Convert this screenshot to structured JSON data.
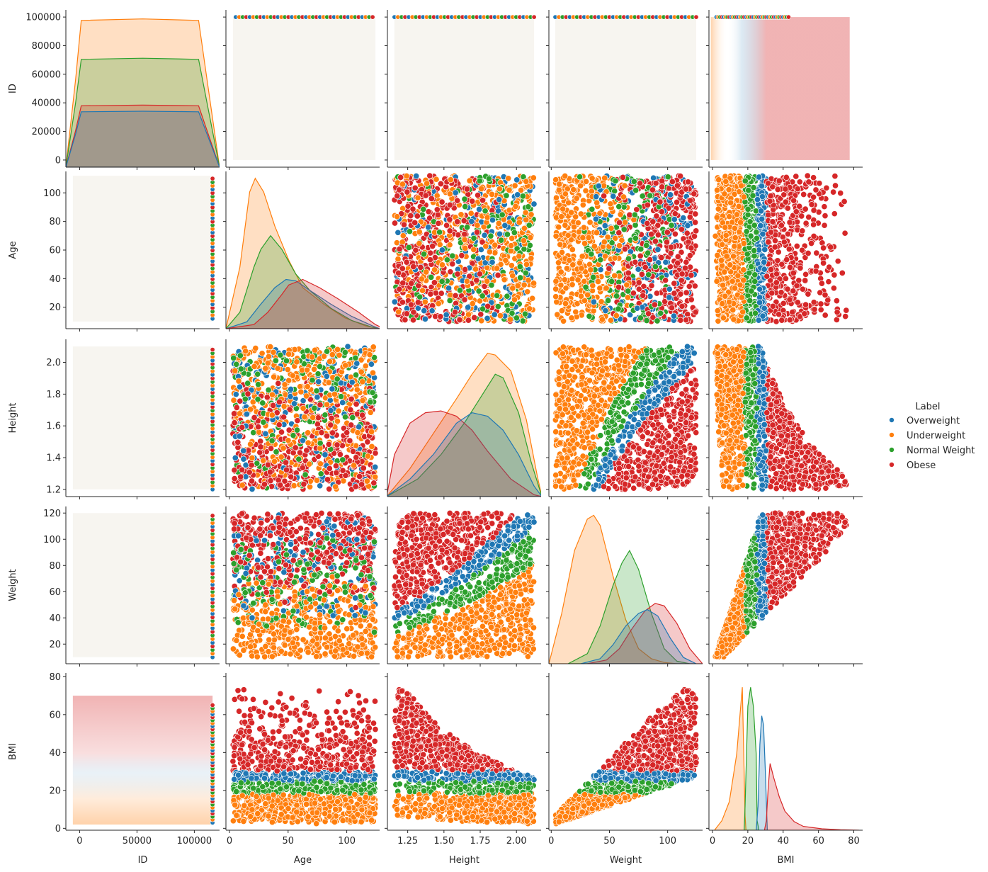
{
  "chart_data": {
    "type": "scatter",
    "subtype": "pairplot",
    "title": "",
    "variables": [
      "ID",
      "Age",
      "Height",
      "Weight",
      "BMI"
    ],
    "axes": {
      "ID": {
        "range": [
          -5000,
          105000
        ],
        "ticks": [
          0,
          20000,
          40000,
          60000,
          80000,
          100000
        ],
        "tick_labels": [
          "0",
          "20000",
          "40000",
          "60000",
          "80000",
          "100000"
        ]
      },
      "Age": {
        "range": [
          5,
          115
        ],
        "ticks": [
          0,
          20,
          40,
          60,
          80,
          100
        ],
        "tick_labels": [
          "0",
          "20",
          "40",
          "60",
          "80",
          "100"
        ]
      },
      "Height": {
        "range": [
          1.155,
          2.145
        ],
        "ticks": [
          1.2,
          1.4,
          1.6,
          1.8,
          2.0
        ],
        "tick_labels": [
          "1.2",
          "1.4",
          "1.6",
          "1.8",
          "2.0"
        ]
      },
      "Weight": {
        "range": [
          5,
          125
        ],
        "ticks": [
          20,
          40,
          60,
          80,
          100,
          120
        ],
        "tick_labels": [
          "20",
          "40",
          "60",
          "80",
          "100",
          "120"
        ]
      },
      "BMI": {
        "range": [
          -1,
          82
        ],
        "ticks": [
          0,
          20,
          40,
          60,
          80
        ],
        "tick_labels": [
          "0",
          "20",
          "40",
          "60",
          "80"
        ]
      }
    },
    "bottom_x_axes": {
      "ID": {
        "range": [
          -12000,
          122000
        ],
        "ticks": [
          0,
          50000,
          100000
        ],
        "tick_labels": [
          "0",
          "50000",
          "100000"
        ]
      },
      "Age": {
        "range": [
          -3,
          128
        ],
        "ticks": [
          0,
          50,
          100
        ],
        "tick_labels": [
          "0",
          "50",
          "100"
        ]
      },
      "Height": {
        "range": [
          1.11,
          2.17
        ],
        "ticks": [
          1.25,
          1.5,
          1.75,
          2.0
        ],
        "tick_labels": [
          "1.25",
          "1.50",
          "1.75",
          "2.00"
        ]
      },
      "Weight": {
        "range": [
          -2,
          130
        ],
        "ticks": [
          0,
          50,
          100
        ],
        "tick_labels": [
          "0",
          "50",
          "100"
        ]
      },
      "BMI": {
        "range": [
          -2,
          85
        ],
        "ticks": [
          0,
          20,
          40,
          60,
          80
        ],
        "tick_labels": [
          "0",
          "20",
          "40",
          "60",
          "80"
        ]
      }
    },
    "legend": {
      "title": "Label",
      "placement": "center-right",
      "entries": [
        {
          "name": "Overweight",
          "color": "#1f77b4"
        },
        {
          "name": "Underweight",
          "color": "#ff7f0e"
        },
        {
          "name": "Normal Weight",
          "color": "#2ca02c"
        },
        {
          "name": "Obese",
          "color": "#d62728"
        }
      ]
    },
    "diagonal_kde": {
      "ID": {
        "ymax": 105000,
        "flat_levels": [
          {
            "series": "Underweight",
            "level": 98000
          },
          {
            "series": "Normal Weight",
            "level": 72000
          },
          {
            "series": "Obese",
            "level": 41000
          },
          {
            "series": "Overweight",
            "level": 37000
          }
        ],
        "x_support": [
          -5000,
          105000
        ]
      },
      "Age": {
        "ymax": 115,
        "series": [
          {
            "name": "Underweight",
            "x": [
              5,
              15,
              22,
              26,
              32,
              40,
              50,
              60,
              75,
              90,
              105,
              115
            ],
            "y": [
              0,
              45,
              100,
              110,
              100,
              75,
              50,
              30,
              18,
              8,
              2,
              0
            ]
          },
          {
            "name": "Normal Weight",
            "x": [
              5,
              15,
              25,
              30,
              37,
              45,
              55,
              65,
              80,
              95,
              110,
              115
            ],
            "y": [
              0,
              12,
              45,
              58,
              68,
              58,
              40,
              28,
              15,
              6,
              1,
              0
            ]
          },
          {
            "name": "Overweight",
            "x": [
              5,
              20,
              30,
              40,
              48,
              55,
              65,
              80,
              95,
              110,
              115
            ],
            "y": [
              0,
              5,
              18,
              30,
              36,
              35,
              28,
              18,
              9,
              2,
              0
            ]
          },
          {
            "name": "Obese",
            "x": [
              5,
              25,
              35,
              45,
              50,
              60,
              72,
              85,
              100,
              112,
              118
            ],
            "y": [
              0,
              3,
              12,
              25,
              32,
              36,
              30,
              22,
              12,
              3,
              0
            ]
          }
        ]
      },
      "Height": {
        "ymax": 4.5,
        "series": [
          {
            "name": "Underweight",
            "x": [
              1.15,
              1.3,
              1.45,
              1.6,
              1.7,
              1.8,
              1.85,
              1.95,
              2.05,
              2.12,
              2.15
            ],
            "y": [
              0,
              0.8,
              1.8,
              2.8,
              3.5,
              4.1,
              4.05,
              3.6,
              2.2,
              0.6,
              0
            ]
          },
          {
            "name": "Normal Weight",
            "x": [
              1.15,
              1.35,
              1.5,
              1.65,
              1.75,
              1.85,
              1.9,
              2.0,
              2.08,
              2.15
            ],
            "y": [
              0,
              0.5,
              1.2,
              2.1,
              2.8,
              3.5,
              3.4,
              2.4,
              1.0,
              0
            ]
          },
          {
            "name": "Obese",
            "x": [
              1.15,
              1.2,
              1.3,
              1.4,
              1.5,
              1.6,
              1.7,
              1.8,
              1.95,
              2.1,
              2.15
            ],
            "y": [
              0,
              1.2,
              2.1,
              2.4,
              2.45,
              2.3,
              1.9,
              1.3,
              0.5,
              0.05,
              0
            ]
          },
          {
            "name": "Overweight",
            "x": [
              1.15,
              1.3,
              1.45,
              1.6,
              1.7,
              1.8,
              1.9,
              2.0,
              2.1,
              2.15
            ],
            "y": [
              0,
              0.5,
              1.2,
              2.1,
              2.4,
              2.3,
              1.9,
              1.2,
              0.3,
              0
            ]
          }
        ]
      },
      "Weight": {
        "ymax": 125,
        "series": [
          {
            "name": "Underweight",
            "x": [
              5,
              15,
              25,
              35,
              40,
              45,
              55,
              65,
              75,
              85,
              95,
              105
            ],
            "y": [
              0,
              40,
              90,
              115,
              118,
              110,
              70,
              35,
              12,
              4,
              1,
              0
            ]
          },
          {
            "name": "Normal Weight",
            "x": [
              20,
              35,
              45,
              55,
              62,
              68,
              75,
              85,
              95,
              105,
              115
            ],
            "y": [
              0,
              8,
              30,
              62,
              80,
              90,
              75,
              40,
              12,
              2,
              0
            ]
          },
          {
            "name": "Obese",
            "x": [
              35,
              50,
              60,
              70,
              80,
              88,
              95,
              105,
              115,
              125
            ],
            "y": [
              0,
              3,
              12,
              28,
              42,
              48,
              46,
              32,
              12,
              0
            ]
          },
          {
            "name": "Overweight",
            "x": [
              30,
              45,
              55,
              65,
              75,
              82,
              90,
              100,
              110,
              120
            ],
            "y": [
              0,
              4,
              15,
              30,
              40,
              43,
              38,
              20,
              5,
              0
            ]
          }
        ]
      },
      "BMI": {
        "ymax": 0.33,
        "series": [
          {
            "name": "Underweight",
            "x": [
              2,
              6,
              10,
              14,
              17,
              18.5,
              19,
              25
            ],
            "y": [
              0,
              0.02,
              0.06,
              0.16,
              0.3,
              0.03,
              0,
              0
            ]
          },
          {
            "name": "Normal Weight",
            "x": [
              18,
              18.5,
              20,
              21.5,
              23,
              24.5,
              25,
              26
            ],
            "y": [
              0,
              0.05,
              0.26,
              0.3,
              0.26,
              0.16,
              0.02,
              0
            ]
          },
          {
            "name": "Overweight",
            "x": [
              24.5,
              25.5,
              26.5,
              27.5,
              28.5,
              29.5,
              30.5
            ],
            "y": [
              0,
              0.05,
              0.18,
              0.24,
              0.22,
              0.12,
              0
            ]
          },
          {
            "name": "Obese",
            "x": [
              29,
              30,
              31,
              32,
              34,
              37,
              40,
              45,
              50,
              60,
              70,
              80
            ],
            "y": [
              0,
              0.02,
              0.09,
              0.14,
              0.11,
              0.07,
              0.04,
              0.018,
              0.008,
              0.003,
              0.001,
              0
            ]
          }
        ]
      }
    }
  }
}
